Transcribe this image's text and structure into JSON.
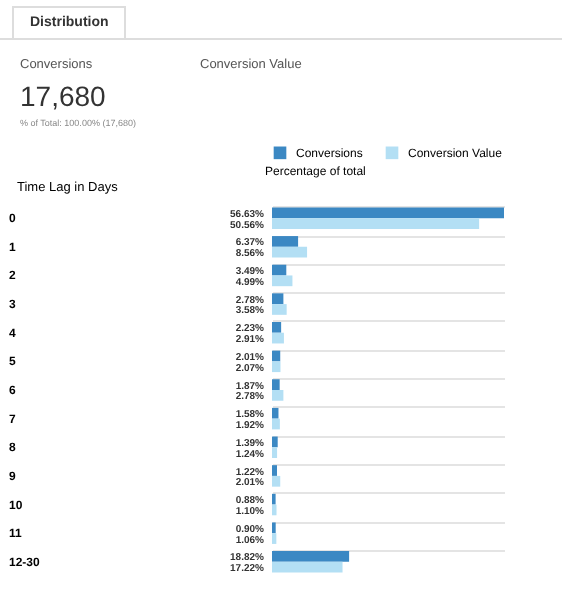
{
  "chart_data": {
    "type": "bar",
    "orientation": "horizontal",
    "title": "Distribution",
    "annotations": [
      "Conversions",
      "Conversion Value",
      "17,680",
      "% of Total: 100.00% (17,680)"
    ],
    "xlabel": "Percentage of total",
    "ylabel": "Time Lag in Days",
    "tick_labels": "y",
    "legend": "top left",
    "categories": [
      "0",
      "1",
      "2",
      "3",
      "4",
      "5",
      "6",
      "7",
      "8",
      "9",
      "10",
      "11",
      "12-30"
    ],
    "series": [
      {
        "name": "Conversions",
        "color": "#3b88c3",
        "values": [
          56.63,
          6.37,
          3.49,
          2.78,
          2.23,
          2.01,
          1.87,
          1.58,
          1.39,
          1.22,
          0.88,
          0.9,
          18.82
        ],
        "value_labels": [
          "56.63%",
          "6.37%",
          "3.49%",
          "2.78%",
          "2.23%",
          "2.01%",
          "1.87%",
          "1.58%",
          "1.39%",
          "1.22%",
          "0.88%",
          "0.90%",
          "18.82%"
        ]
      },
      {
        "name": "Conversion Value",
        "color": "#b3dff4",
        "values": [
          50.56,
          8.56,
          4.99,
          3.58,
          2.91,
          2.07,
          2.78,
          1.92,
          1.24,
          2.01,
          1.1,
          1.06,
          17.22
        ],
        "value_labels": [
          "50.56%",
          "8.56%",
          "4.99%",
          "3.58%",
          "2.91%",
          "2.07%",
          "2.78%",
          "1.92%",
          "1.24%",
          "2.01%",
          "1.10%",
          "1.06%",
          "17.22%"
        ]
      }
    ]
  }
}
